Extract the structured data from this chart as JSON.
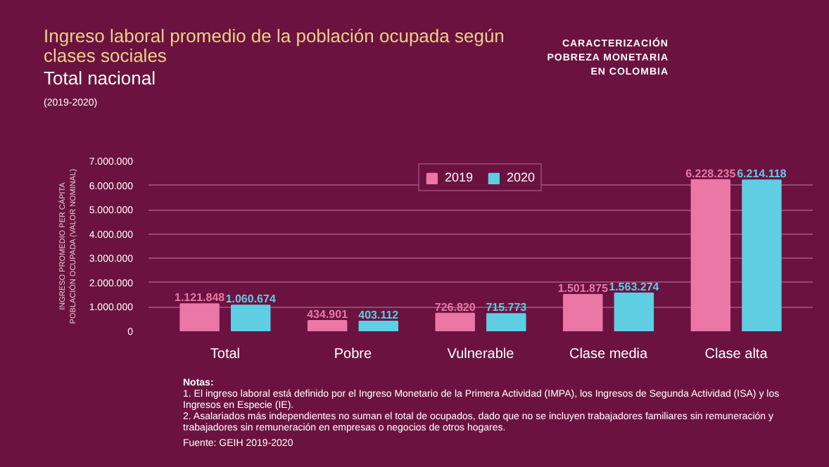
{
  "chart_data": {
    "type": "bar",
    "title": "Ingreso laboral promedio de la población ocupada según clases sociales",
    "subtitle": "Total nacional",
    "ylabel": "INGRESO PROMEDIO PER CÁPITA POBLACIÓN OCUPADA (VALOR NOMINAL)",
    "categories": [
      "Total",
      "Pobre",
      "Vulnerable",
      "Clase media",
      "Clase alta"
    ],
    "series": [
      {
        "name": "2019",
        "color": "#ea77a6",
        "values": [
          1121848,
          434901,
          726820,
          1501875,
          6228235
        ],
        "value_labels": [
          "1.121.848",
          "434.901",
          "726.820",
          "1.501.875",
          "6.228.235"
        ]
      },
      {
        "name": "2020",
        "color": "#5fcde2",
        "values": [
          1060674,
          403112,
          715773,
          1563274,
          6214118
        ],
        "value_labels": [
          "1.060.674",
          "403.112",
          "715.773",
          "1.563.274",
          "6.214.118"
        ]
      }
    ],
    "ylim": [
      0,
      7000000
    ],
    "yticks": [
      {
        "value": 0,
        "label": "0"
      },
      {
        "value": 1000000,
        "label": "1.000.000"
      },
      {
        "value": 2000000,
        "label": "2.000.000"
      },
      {
        "value": 3000000,
        "label": "3.000.000"
      },
      {
        "value": 4000000,
        "label": "4.000.000"
      },
      {
        "value": 5000000,
        "label": "5.000.000"
      },
      {
        "value": 6000000,
        "label": "6.000.000"
      },
      {
        "value": 7000000,
        "label": "7.000.000"
      }
    ],
    "grid": "y",
    "legend": "top",
    "annotations": [
      "(2019-2020)",
      "CARACTERIZACIÓN POBREZA MONETARIA EN COLOMBIA",
      "Notas:",
      "1. El ingreso laboral está definido por el Ingreso Monetario de la Primera Actividad (IMPA), los Ingresos de Segunda Actividad (ISA) y los Ingresos en Especie (IE).",
      "2. Asalariados más independientes no suman el total de ocupados, dado que no se incluyen trabajadores familiares sin remuneración y trabajadores sin remuneración en empresas o negocios de otros hogares.",
      "Fuente: GEIH 2019-2020"
    ]
  }
}
